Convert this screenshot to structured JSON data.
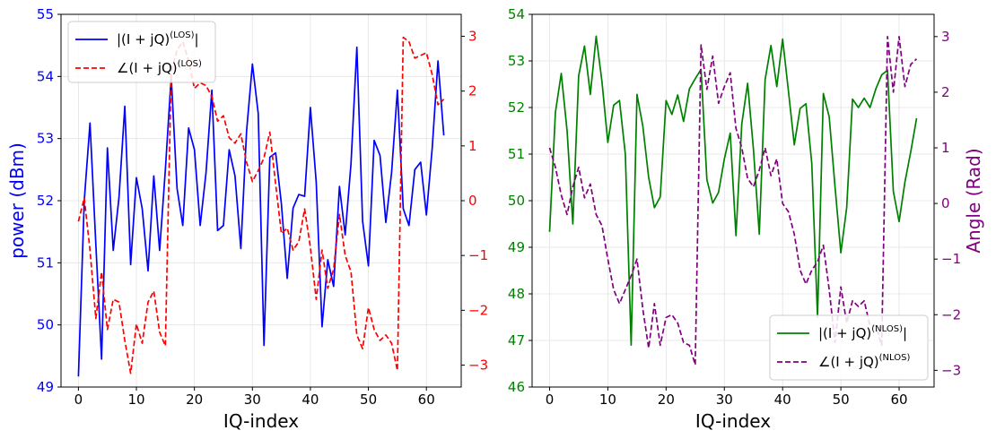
{
  "chart_data": [
    {
      "type": "line",
      "panel": "left",
      "xlabel": "IQ-index",
      "ylabel": "power (dBm)",
      "y2label": "",
      "xlim": [
        -3,
        66
      ],
      "ylim": [
        49,
        55
      ],
      "y2lim": [
        -3.4,
        3.4
      ],
      "xticks": [
        "0",
        "10",
        "20",
        "30",
        "40",
        "50",
        "60"
      ],
      "yticks": [
        "49",
        "50",
        "51",
        "52",
        "53",
        "54",
        "55"
      ],
      "y2ticks": [
        "−3",
        "−2",
        "−1",
        "0",
        "1",
        "2",
        "3"
      ],
      "grid": true,
      "legend_position": "top-left",
      "ytick_color": "#0000ff",
      "y2tick_color": "#ff0000",
      "ylabel_color": "#0000ff",
      "series": [
        {
          "name": "|(I + jQ)(LOS)|",
          "legend_main": "|(I + jQ)",
          "legend_sup": "(LOS)",
          "legend_tail": "|",
          "axis": "left",
          "color": "#0000ff",
          "dash": "solid",
          "x": [
            0,
            1,
            2,
            3,
            4,
            5,
            6,
            7,
            8,
            9,
            10,
            11,
            12,
            13,
            14,
            15,
            16,
            17,
            18,
            19,
            20,
            21,
            22,
            23,
            24,
            25,
            26,
            27,
            28,
            29,
            30,
            31,
            32,
            33,
            34,
            35,
            36,
            37,
            38,
            39,
            40,
            41,
            42,
            43,
            44,
            45,
            46,
            47,
            48,
            49,
            50,
            51,
            52,
            53,
            54,
            55,
            56,
            57,
            58,
            59,
            60,
            61,
            62,
            63
          ],
          "values": [
            49.17,
            52.0,
            53.25,
            51.3,
            49.45,
            52.85,
            51.2,
            52.05,
            53.52,
            50.97,
            52.37,
            51.87,
            50.87,
            52.4,
            51.2,
            52.5,
            54.0,
            52.2,
            51.6,
            53.17,
            52.82,
            51.6,
            52.45,
            53.78,
            51.52,
            51.6,
            52.82,
            52.4,
            51.23,
            53.12,
            54.2,
            53.4,
            49.67,
            52.7,
            52.77,
            51.95,
            50.75,
            51.88,
            52.1,
            52.07,
            53.5,
            52.3,
            49.97,
            51.05,
            50.62,
            52.23,
            51.45,
            52.6,
            54.47,
            51.67,
            50.95,
            52.97,
            52.73,
            51.65,
            52.45,
            53.78,
            51.87,
            51.6,
            52.5,
            52.62,
            51.77,
            52.85,
            54.25,
            53.05
          ]
        },
        {
          "name": "∠(I + jQ)(LOS)",
          "legend_main": "∠(I + jQ)",
          "legend_sup": "(LOS)",
          "legend_tail": "",
          "axis": "right",
          "color": "#ff0000",
          "dash": "dashed",
          "x": [
            0,
            1,
            2,
            3,
            4,
            5,
            6,
            7,
            8,
            9,
            10,
            11,
            12,
            13,
            14,
            15,
            16,
            17,
            18,
            19,
            20,
            21,
            22,
            23,
            24,
            25,
            26,
            27,
            28,
            29,
            30,
            31,
            32,
            33,
            34,
            35,
            36,
            37,
            38,
            39,
            40,
            41,
            42,
            43,
            44,
            45,
            46,
            47,
            48,
            49,
            50,
            51,
            52,
            53,
            54,
            55,
            56,
            57,
            58,
            59,
            60,
            61,
            62,
            63
          ],
          "values": [
            -0.38,
            0.05,
            -0.9,
            -2.15,
            -1.3,
            -2.35,
            -1.8,
            -1.85,
            -2.55,
            -3.15,
            -2.25,
            -2.6,
            -1.85,
            -1.65,
            -2.4,
            -2.65,
            2.35,
            2.75,
            2.9,
            2.55,
            2.05,
            2.15,
            2.1,
            1.9,
            1.45,
            1.55,
            1.15,
            1.05,
            1.22,
            0.7,
            0.35,
            0.55,
            0.78,
            1.25,
            0.3,
            -0.6,
            -0.5,
            -0.9,
            -0.75,
            -0.15,
            -0.85,
            -1.8,
            -0.9,
            -1.6,
            -1.25,
            -0.25,
            -1.0,
            -1.3,
            -2.45,
            -2.7,
            -1.95,
            -2.35,
            -2.55,
            -2.45,
            -2.6,
            -3.1,
            2.98,
            2.9,
            2.6,
            2.65,
            2.7,
            2.3,
            1.75,
            1.85
          ]
        }
      ]
    },
    {
      "type": "line",
      "panel": "right",
      "xlabel": "IQ-index",
      "ylabel": "",
      "y2label": "Angle (Rad)",
      "xlim": [
        -3,
        66
      ],
      "ylim": [
        46,
        54
      ],
      "y2lim": [
        -3.3,
        3.4
      ],
      "xticks": [
        "0",
        "10",
        "20",
        "30",
        "40",
        "50",
        "60"
      ],
      "yticks": [
        "46",
        "47",
        "48",
        "49",
        "50",
        "51",
        "52",
        "53",
        "54"
      ],
      "y2ticks": [
        "−3",
        "−2",
        "−1",
        "0",
        "1",
        "2",
        "3"
      ],
      "grid": true,
      "legend_position": "bottom-right",
      "ytick_color": "#008000",
      "y2tick_color": "#800080",
      "y2label_color": "#800080",
      "series": [
        {
          "name": "|(I + jQ)(NLOS)|",
          "legend_main": "|(I + jQ)",
          "legend_sup": "(NLOS)",
          "legend_tail": "|",
          "axis": "left",
          "color": "#008000",
          "dash": "solid",
          "x": [
            0,
            1,
            2,
            3,
            4,
            5,
            6,
            7,
            8,
            9,
            10,
            11,
            12,
            13,
            14,
            15,
            16,
            17,
            18,
            19,
            20,
            21,
            22,
            23,
            24,
            25,
            26,
            27,
            28,
            29,
            30,
            31,
            32,
            33,
            34,
            35,
            36,
            37,
            38,
            39,
            40,
            41,
            42,
            43,
            44,
            45,
            46,
            47,
            48,
            49,
            50,
            51,
            52,
            53,
            54,
            55,
            56,
            57,
            58,
            59,
            60,
            61,
            62,
            63
          ],
          "values": [
            49.33,
            51.9,
            52.73,
            51.5,
            49.5,
            52.68,
            53.32,
            52.28,
            53.53,
            52.55,
            51.25,
            52.05,
            52.15,
            51.0,
            46.9,
            52.28,
            51.6,
            50.5,
            49.85,
            50.08,
            52.15,
            51.85,
            52.27,
            51.7,
            52.4,
            52.62,
            52.82,
            50.45,
            49.95,
            50.18,
            50.9,
            51.45,
            49.25,
            51.65,
            52.52,
            51.1,
            49.28,
            52.6,
            53.33,
            52.45,
            53.47,
            52.35,
            51.2,
            51.98,
            52.08,
            50.8,
            47.5,
            52.3,
            51.8,
            50.3,
            48.88,
            49.85,
            52.18,
            52.0,
            52.2,
            52.0,
            52.4,
            52.7,
            52.8,
            50.2,
            49.55,
            50.4,
            51.05,
            51.77
          ]
        },
        {
          "name": "∠(I + jQ)(NLOS)",
          "legend_main": "∠(I + jQ)",
          "legend_sup": "(NLOS)",
          "legend_tail": "",
          "axis": "right",
          "color": "#800080",
          "dash": "dashed",
          "x": [
            0,
            1,
            2,
            3,
            4,
            5,
            6,
            7,
            8,
            9,
            10,
            11,
            12,
            13,
            14,
            15,
            16,
            17,
            18,
            19,
            20,
            21,
            22,
            23,
            24,
            25,
            26,
            27,
            28,
            29,
            30,
            31,
            32,
            33,
            34,
            35,
            36,
            37,
            38,
            39,
            40,
            41,
            42,
            43,
            44,
            45,
            46,
            47,
            48,
            49,
            50,
            51,
            52,
            53,
            54,
            55,
            56,
            57,
            58,
            59,
            60,
            61,
            62,
            63
          ],
          "values": [
            1.0,
            0.65,
            0.15,
            -0.2,
            0.3,
            0.65,
            0.1,
            0.35,
            -0.2,
            -0.4,
            -1.0,
            -1.55,
            -1.8,
            -1.55,
            -1.3,
            -1.0,
            -1.9,
            -2.6,
            -1.8,
            -2.55,
            -2.05,
            -2.0,
            -2.15,
            -2.5,
            -2.55,
            -2.9,
            2.85,
            2.05,
            2.65,
            1.8,
            2.1,
            2.35,
            1.35,
            1.0,
            0.45,
            0.3,
            0.6,
            1.0,
            0.5,
            0.8,
            0.0,
            -0.15,
            -0.55,
            -1.2,
            -1.45,
            -1.2,
            -1.05,
            -0.75,
            -1.55,
            -2.5,
            -1.5,
            -2.15,
            -1.75,
            -1.85,
            -1.75,
            -2.2,
            -2.2,
            -2.55,
            3.0,
            2.0,
            3.0,
            2.1,
            2.5,
            2.6
          ]
        }
      ]
    }
  ]
}
